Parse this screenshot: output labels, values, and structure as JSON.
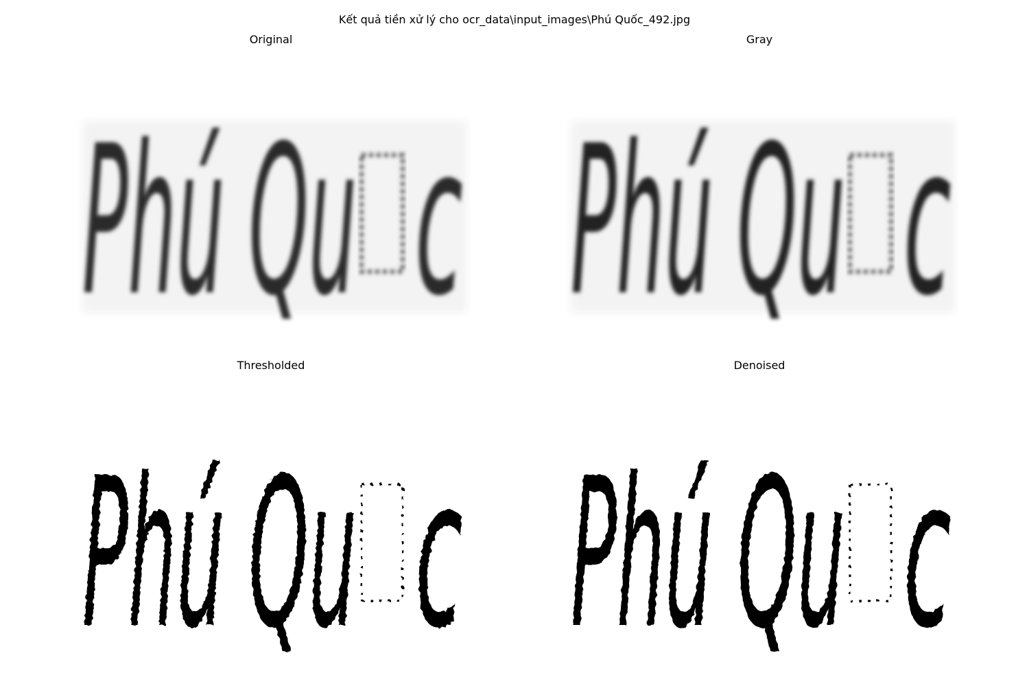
{
  "figure": {
    "title": "Kết quả tiền xử lý cho ocr_data\\input_images\\Phú Quốc_492.jpg"
  },
  "panels": [
    {
      "title": "Original",
      "word": "Phú Qu",
      "glyph_tail": "c",
      "style": "blurred-gray"
    },
    {
      "title": "Gray",
      "word": "Phú Qu",
      "glyph_tail": "c",
      "style": "blurred-gray"
    },
    {
      "title": "Thresholded",
      "word": "Phú Qu",
      "glyph_tail": "c",
      "style": "binary"
    },
    {
      "title": "Denoised",
      "word": "Phú Qu",
      "glyph_tail": "c",
      "style": "binary"
    }
  ],
  "colors": {
    "ink_gray": "#2a2a2a",
    "ink_binary": "#000000",
    "noise": "#bdbdbd",
    "background": "#ffffff"
  }
}
